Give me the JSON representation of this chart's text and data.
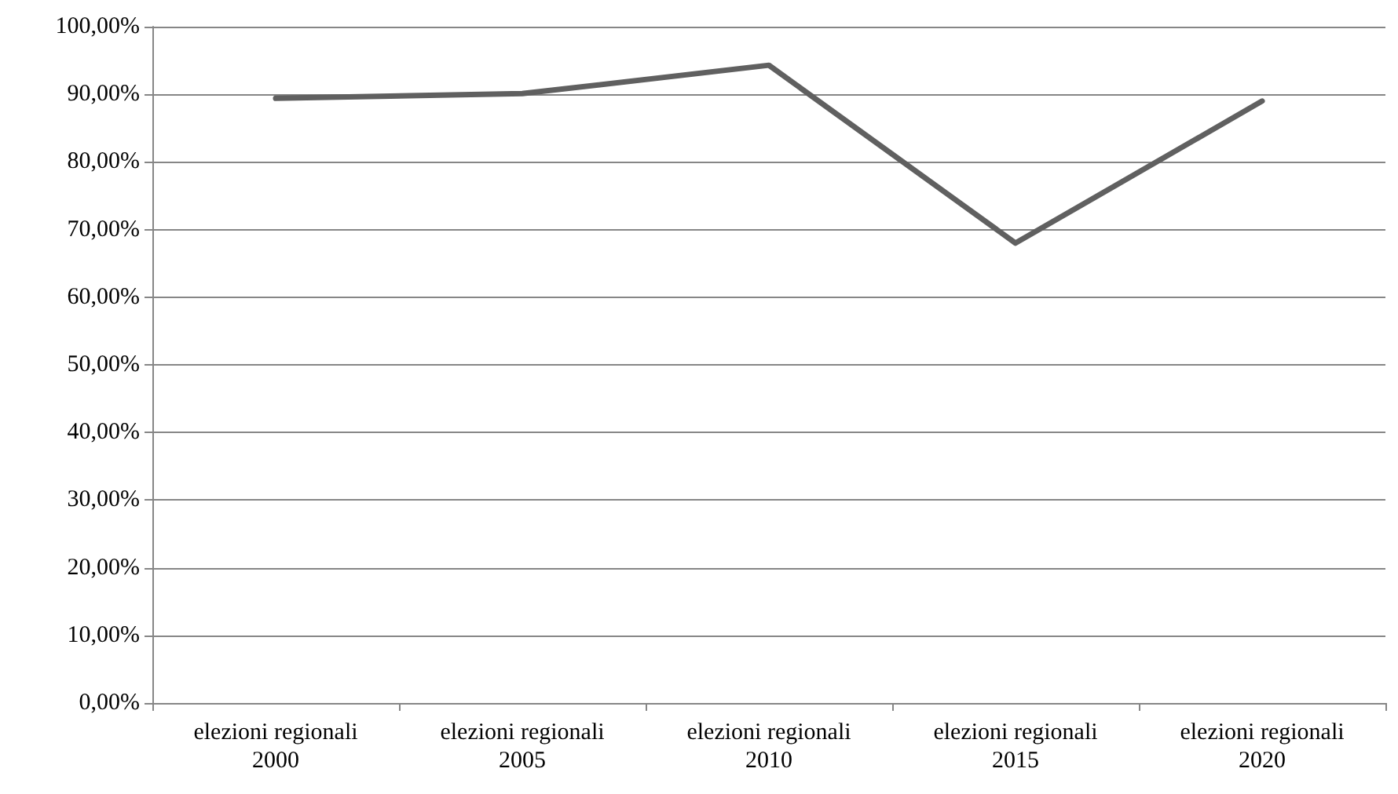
{
  "chart_data": {
    "type": "line",
    "categories": [
      "elezioni regionali\n2000",
      "elezioni regionali\n2005",
      "elezioni regionali\n2010",
      "elezioni regionali\n2015",
      "elezioni regionali\n2020"
    ],
    "series": [
      {
        "color": "#606060",
        "values": [
          89.4,
          90.1,
          94.3,
          68.0,
          89.0
        ]
      }
    ],
    "ylim": [
      0,
      100
    ],
    "yticks": [
      {
        "value": 0,
        "label": "0,00%"
      },
      {
        "value": 10,
        "label": "10,00%"
      },
      {
        "value": 20,
        "label": "20,00%"
      },
      {
        "value": 30,
        "label": "30,00%"
      },
      {
        "value": 40,
        "label": "40,00%"
      },
      {
        "value": 50,
        "label": "50,00%"
      },
      {
        "value": 60,
        "label": "60,00%"
      },
      {
        "value": 70,
        "label": "70,00%"
      },
      {
        "value": 80,
        "label": "80,00%"
      },
      {
        "value": 90,
        "label": "90,00%"
      },
      {
        "value": 100,
        "label": "100,00%"
      }
    ],
    "grid": "y",
    "marker": "none",
    "line_style": "solid"
  }
}
